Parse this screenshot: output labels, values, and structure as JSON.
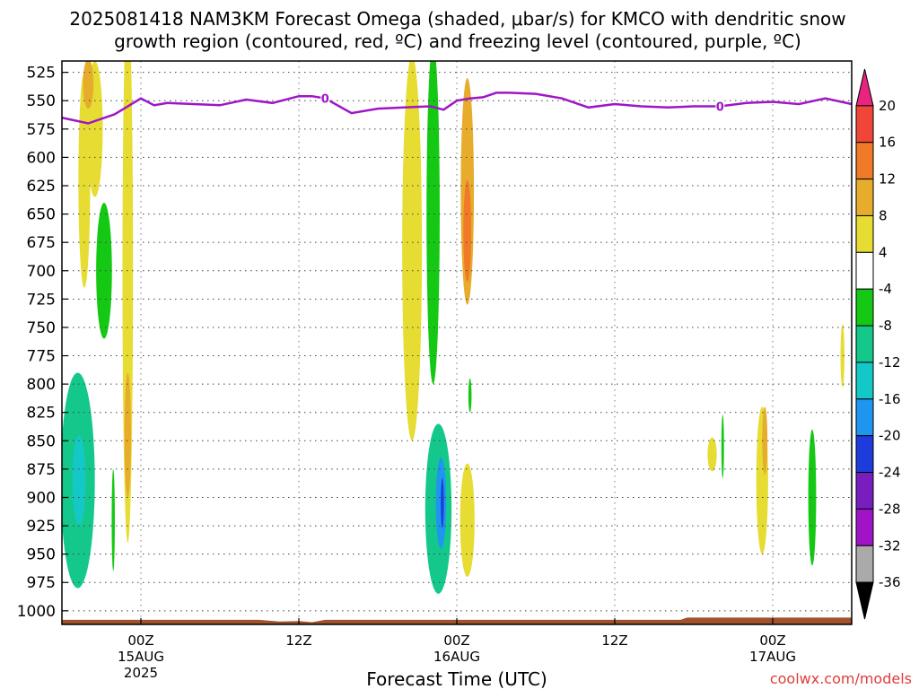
{
  "chart_data": {
    "type": "heatmap",
    "title_line1": "2025081418 NAM3KM Forecast Omega (shaded, μbar/s) for KMCO with dendritic snow",
    "title_line2": "growth region (contoured, red, ºC) and freezing level (contoured, purple, ºC)",
    "xlabel": "Forecast Time (UTC)",
    "ylabel": "",
    "credit": "coolwx.com/models",
    "x_axis": {
      "unit": "forecast hour",
      "range": [
        0,
        60
      ],
      "ticks": [
        {
          "hour": 6,
          "label1": "00Z",
          "label2": "15AUG",
          "label3": "2025"
        },
        {
          "hour": 18,
          "label1": "12Z",
          "label2": "",
          "label3": ""
        },
        {
          "hour": 30,
          "label1": "00Z",
          "label2": "16AUG",
          "label3": ""
        },
        {
          "hour": 42,
          "label1": "12Z",
          "label2": "",
          "label3": ""
        },
        {
          "hour": 54,
          "label1": "00Z",
          "label2": "17AUG",
          "label3": ""
        }
      ]
    },
    "y_axis": {
      "unit": "hPa",
      "range": [
        515,
        1012
      ],
      "ticks": [
        525,
        550,
        575,
        600,
        625,
        650,
        675,
        700,
        725,
        750,
        775,
        800,
        825,
        850,
        875,
        900,
        925,
        950,
        975,
        1000
      ]
    },
    "grid": true,
    "colorbar": {
      "labels": [
        "20",
        "16",
        "12",
        "8",
        "4",
        "-4",
        "-8",
        "-12",
        "-16",
        "-20",
        "-24",
        "-28",
        "-32",
        "-36"
      ],
      "bins": [
        {
          "color": "#e8247e"
        },
        {
          "color": "#f0463a"
        },
        {
          "color": "#f07a28"
        },
        {
          "color": "#e8ac2c"
        },
        {
          "color": "#e6dc32"
        },
        {
          "color": "#ffffff"
        },
        {
          "color": "#14c814"
        },
        {
          "color": "#14c88c"
        },
        {
          "color": "#14c8c8"
        },
        {
          "color": "#1e96ef"
        },
        {
          "color": "#1e3cdc"
        },
        {
          "color": "#781ebe"
        },
        {
          "color": "#a014c8"
        },
        {
          "color": "#aaaaaa"
        },
        {
          "color": "#000000"
        }
      ]
    },
    "omega_features": [
      {
        "hour": 1.7,
        "p": 620,
        "halfwidth_h": 0.45,
        "halfheight_p": 95,
        "value": 6
      },
      {
        "hour": 2.5,
        "p": 575,
        "halfwidth_h": 0.6,
        "halfheight_p": 60,
        "value": 6
      },
      {
        "hour": 2.0,
        "p": 535,
        "halfwidth_h": 0.4,
        "halfheight_p": 22,
        "value": 9
      },
      {
        "hour": 3.2,
        "p": 700,
        "halfwidth_h": 0.6,
        "halfheight_p": 60,
        "value": -7
      },
      {
        "hour": 5.0,
        "p": 700,
        "halfwidth_h": 0.4,
        "halfheight_p": 240,
        "value": 6
      },
      {
        "hour": 5.0,
        "p": 845,
        "halfwidth_h": 0.25,
        "halfheight_p": 55,
        "value": 10
      },
      {
        "hour": 1.2,
        "p": 885,
        "halfwidth_h": 1.3,
        "halfheight_p": 95,
        "value": -9
      },
      {
        "hour": 1.3,
        "p": 885,
        "halfwidth_h": 0.5,
        "halfheight_p": 40,
        "value": -14
      },
      {
        "hour": 3.9,
        "p": 920,
        "halfwidth_h": 0.12,
        "halfheight_p": 45,
        "value": -6
      },
      {
        "hour": 26.6,
        "p": 680,
        "halfwidth_h": 0.75,
        "halfheight_p": 170,
        "value": 6
      },
      {
        "hour": 28.2,
        "p": 650,
        "halfwidth_h": 0.5,
        "halfheight_p": 150,
        "value": -7
      },
      {
        "hour": 28.6,
        "p": 910,
        "halfwidth_h": 1.0,
        "halfheight_p": 75,
        "value": -10
      },
      {
        "hour": 28.8,
        "p": 905,
        "halfwidth_h": 0.4,
        "halfheight_p": 40,
        "value": -16
      },
      {
        "hour": 28.9,
        "p": 905,
        "halfwidth_h": 0.12,
        "halfheight_p": 22,
        "value": -21
      },
      {
        "hour": 30.8,
        "p": 630,
        "halfwidth_h": 0.5,
        "halfheight_p": 100,
        "value": 10
      },
      {
        "hour": 30.8,
        "p": 665,
        "halfwidth_h": 0.3,
        "halfheight_p": 45,
        "value": 13
      },
      {
        "hour": 30.8,
        "p": 920,
        "halfwidth_h": 0.55,
        "halfheight_p": 50,
        "value": 7
      },
      {
        "hour": 31.0,
        "p": 810,
        "halfwidth_h": 0.12,
        "halfheight_p": 15,
        "value": -6
      },
      {
        "hour": 49.4,
        "p": 862,
        "halfwidth_h": 0.35,
        "halfheight_p": 15,
        "value": 5
      },
      {
        "hour": 50.2,
        "p": 855,
        "halfwidth_h": 0.1,
        "halfheight_p": 28,
        "value": -6
      },
      {
        "hour": 53.2,
        "p": 885,
        "halfwidth_h": 0.45,
        "halfheight_p": 65,
        "value": 6
      },
      {
        "hour": 53.4,
        "p": 850,
        "halfwidth_h": 0.2,
        "halfheight_p": 30,
        "value": 9
      },
      {
        "hour": 57.0,
        "p": 900,
        "halfwidth_h": 0.3,
        "halfheight_p": 60,
        "value": -7
      },
      {
        "hour": 59.3,
        "p": 775,
        "halfwidth_h": 0.15,
        "halfheight_p": 28,
        "value": 5
      }
    ],
    "freezing_level": {
      "label": "0",
      "label_hours": [
        20.0,
        50.0
      ],
      "hours": [
        0,
        2,
        4,
        6,
        7,
        8,
        10,
        12,
        14,
        16,
        18,
        19,
        20,
        22,
        24,
        26,
        28,
        29,
        30,
        31,
        32,
        33,
        34,
        36,
        38,
        40,
        42,
        44,
        46,
        48,
        50,
        52,
        54,
        56,
        58,
        60
      ],
      "pressure": [
        565,
        570,
        562,
        548,
        554,
        552,
        553,
        554,
        549,
        552,
        546,
        546,
        548,
        561,
        557,
        556,
        555,
        558,
        550,
        548,
        547,
        543,
        543,
        544,
        548,
        556,
        553,
        555,
        556,
        555,
        555,
        552,
        551,
        553,
        548,
        553
      ]
    },
    "ground": {
      "color": "#a0522d",
      "hours": [
        0,
        15,
        16.5,
        18,
        19,
        20,
        38,
        47,
        47.5,
        60
      ],
      "top_pressure": [
        1008,
        1008,
        1009.5,
        1009,
        1010,
        1008,
        1008,
        1008,
        1006,
        1006
      ]
    }
  }
}
